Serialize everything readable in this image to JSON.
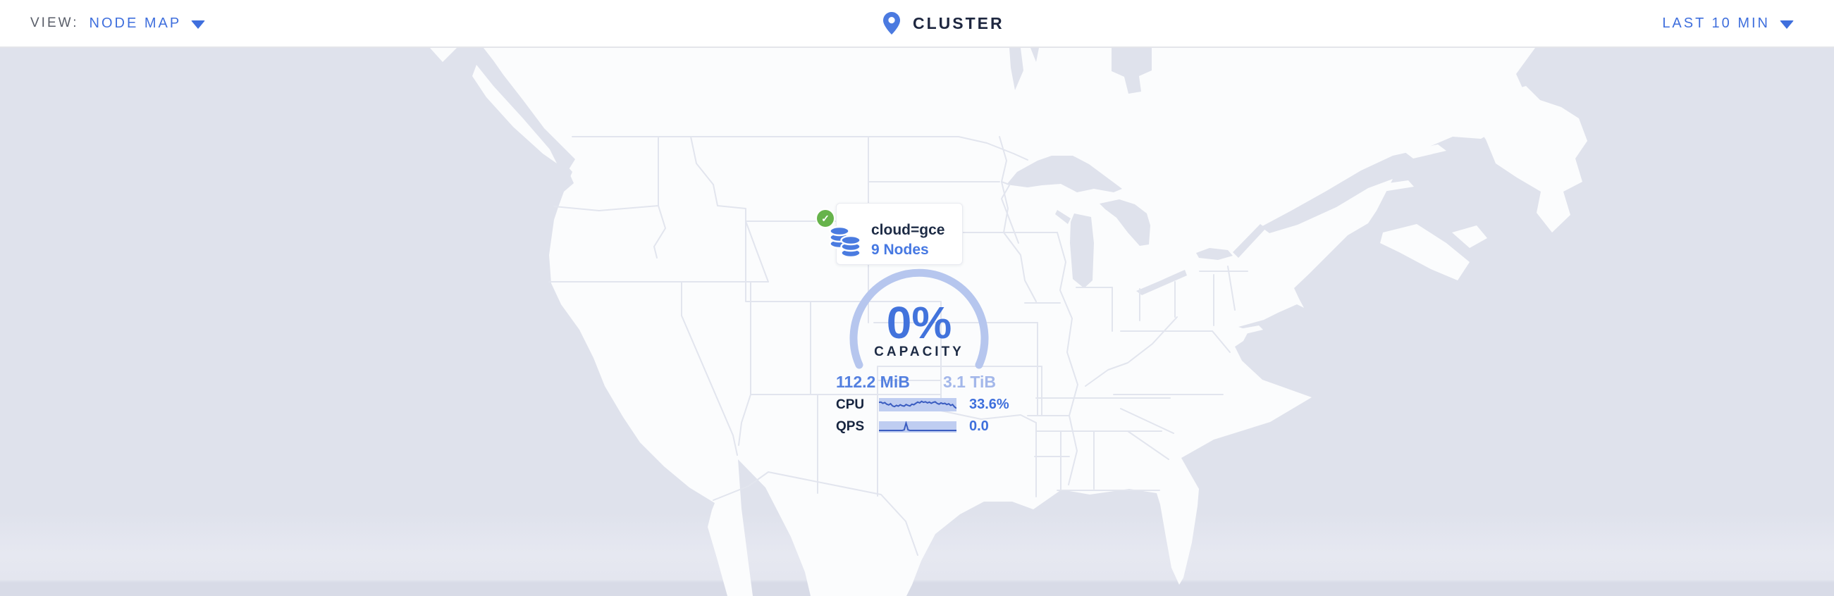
{
  "header": {
    "view_label": "VIEW:",
    "view_selector": {
      "value": "NODE MAP",
      "icon": "chevron-down-icon"
    },
    "cluster_title": "CLUSTER",
    "time_selector": {
      "value": "LAST 10 MIN",
      "icon": "chevron-down-icon"
    }
  },
  "locality": {
    "status": "healthy",
    "status_icon": "check-circle-icon",
    "icon": "database-stack-icon",
    "name": "cloud=gce",
    "nodes_link": "9 Nodes",
    "capacity": {
      "percent": "0%",
      "label": "CAPACITY",
      "used": "112.2 MiB",
      "capable": "3.1 TiB"
    },
    "metrics": [
      {
        "label": "CPU",
        "value": "33.6%",
        "spark": [
          0.3,
          0.28,
          0.38,
          0.32,
          0.45,
          0.52,
          0.42,
          0.6,
          0.66,
          0.55,
          0.62,
          0.5,
          0.58,
          0.62,
          0.48,
          0.55,
          0.6,
          0.45,
          0.5,
          0.38,
          0.28,
          0.35,
          0.22,
          0.3,
          0.25,
          0.35,
          0.28,
          0.38,
          0.3,
          0.26,
          0.38,
          0.45,
          0.35,
          0.42,
          0.38,
          0.48,
          0.42,
          0.55,
          0.48,
          0.68,
          0.8
        ]
      },
      {
        "label": "QPS",
        "value": "0.0",
        "spark": [
          0.86,
          0.86,
          0.86,
          0.86,
          0.86,
          0.86,
          0.86,
          0.86,
          0.86,
          0.86,
          0.86,
          0.86,
          0.86,
          0.8,
          0.1,
          0.8,
          0.86,
          0.86,
          0.86,
          0.86,
          0.86,
          0.86,
          0.86,
          0.86,
          0.86,
          0.86,
          0.86,
          0.86,
          0.86,
          0.86,
          0.86,
          0.86,
          0.86,
          0.86,
          0.86,
          0.86,
          0.86,
          0.86,
          0.86,
          0.86,
          0.86
        ]
      }
    ]
  },
  "colors": {
    "accent-blue": "#3f6fdd",
    "link-blue": "#4678e2",
    "dark-navy": "#1d2b45",
    "muted-gray": "#585d68",
    "gauge-arc": "#b6c6ee",
    "capacity-used": "#5480e0",
    "capacity-total": "#a3b7ea",
    "spark-bg": "#bfcdf1",
    "spark-line": "#3a5cc0",
    "healthy-green": "#66b34b",
    "ocean": "#dfe2ec",
    "land": "#fbfcfd",
    "map-border": "#e2e5ee"
  }
}
